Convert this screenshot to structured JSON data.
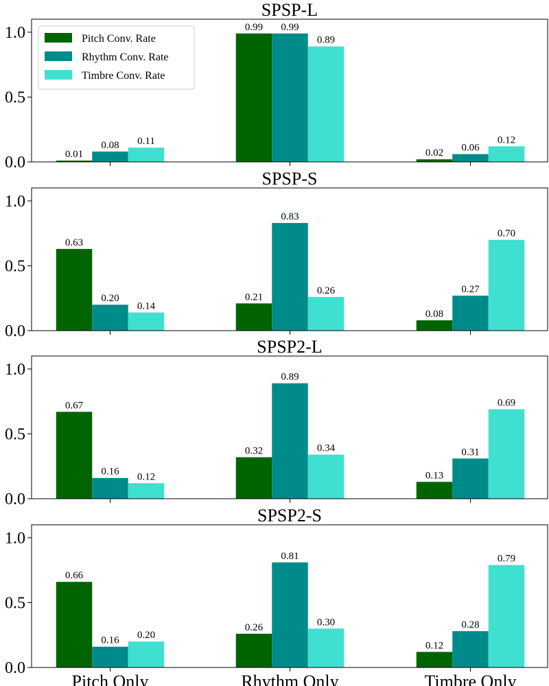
{
  "chart_data": {
    "type": "bar",
    "categories": [
      "Pitch Only",
      "Rhythm Only",
      "Timbre Only"
    ],
    "legend": {
      "location": "upper-left-of-first-panel",
      "entries": [
        "Pitch Conv. Rate",
        "Rhythm Conv. Rate",
        "Timbre Conv. Rate"
      ]
    },
    "colors": {
      "Pitch Conv. Rate": "#006400",
      "Rhythm Conv. Rate": "#008B8B",
      "Timbre Conv. Rate": "#40E0D0"
    },
    "ylim": [
      0,
      1.1
    ],
    "yticks": [
      "0.0",
      "0.5",
      "1.0"
    ],
    "value_label_format": "two-decimals",
    "panels": [
      {
        "title": "SPSP-L",
        "series": [
          {
            "name": "Pitch Conv. Rate",
            "values": [
              0.01,
              0.99,
              0.02
            ]
          },
          {
            "name": "Rhythm Conv. Rate",
            "values": [
              0.08,
              0.99,
              0.06
            ]
          },
          {
            "name": "Timbre Conv. Rate",
            "values": [
              0.11,
              0.89,
              0.12
            ]
          }
        ]
      },
      {
        "title": "SPSP-S",
        "series": [
          {
            "name": "Pitch Conv. Rate",
            "values": [
              0.63,
              0.21,
              0.08
            ]
          },
          {
            "name": "Rhythm Conv. Rate",
            "values": [
              0.2,
              0.83,
              0.27
            ]
          },
          {
            "name": "Timbre Conv. Rate",
            "values": [
              0.14,
              0.26,
              0.7
            ]
          }
        ]
      },
      {
        "title": "SPSP2-L",
        "series": [
          {
            "name": "Pitch Conv. Rate",
            "values": [
              0.67,
              0.32,
              0.13
            ]
          },
          {
            "name": "Rhythm Conv. Rate",
            "values": [
              0.16,
              0.89,
              0.31
            ]
          },
          {
            "name": "Timbre Conv. Rate",
            "values": [
              0.12,
              0.34,
              0.69
            ]
          }
        ]
      },
      {
        "title": "SPSP2-S",
        "series": [
          {
            "name": "Pitch Conv. Rate",
            "values": [
              0.66,
              0.26,
              0.12
            ]
          },
          {
            "name": "Rhythm Conv. Rate",
            "values": [
              0.16,
              0.81,
              0.28
            ]
          },
          {
            "name": "Timbre Conv. Rate",
            "values": [
              0.2,
              0.3,
              0.79
            ]
          }
        ]
      }
    ]
  }
}
